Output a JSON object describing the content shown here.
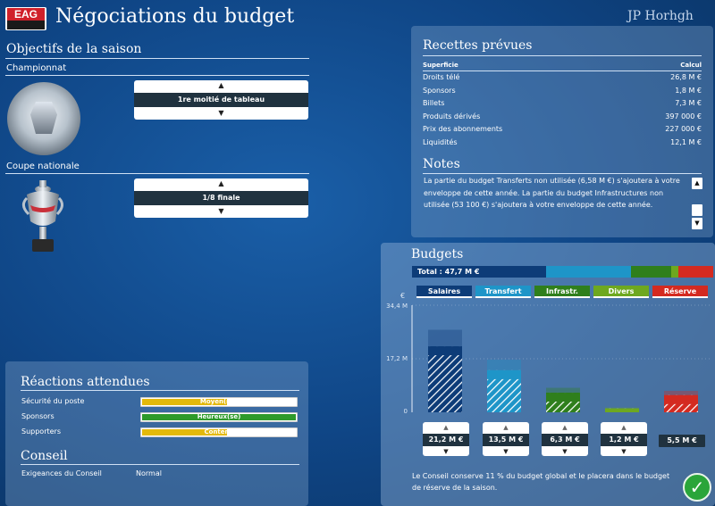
{
  "header": {
    "logo_text": "EAG",
    "title": "Négociations du budget",
    "user": "JP Horhgh"
  },
  "objectives": {
    "title": "Objectifs de la saison",
    "championnat": {
      "label": "Championnat",
      "value": "1re moitié de tableau"
    },
    "coupe": {
      "label": "Coupe nationale",
      "value": "1/8 finale"
    }
  },
  "recettes": {
    "title": "Recettes prévues",
    "col_left": "Superficie",
    "col_right": "Calcul",
    "rows": [
      {
        "label": "Droits télé",
        "value": "26,8 M €"
      },
      {
        "label": "Sponsors",
        "value": "1,8 M €"
      },
      {
        "label": "Billets",
        "value": "7,3 M €"
      },
      {
        "label": "Produits dérivés",
        "value": "397 000 €"
      },
      {
        "label": "Prix des abonnements",
        "value": "227 000 €"
      },
      {
        "label": "Liquidités",
        "value": "12,1 M €"
      }
    ]
  },
  "notes": {
    "title": "Notes",
    "text": "La partie du budget Transferts non utilisée (6,58 M €) s'ajoutera à votre enveloppe de cette année. La partie du budget Infrastructures non utilisée (53 100 €) s'ajoutera à votre enveloppe de cette année."
  },
  "reactions": {
    "title": "Réactions attendues",
    "rows": [
      {
        "label": "Sécurité du poste",
        "value": "Moyen(ne)",
        "color": "#e3b90b",
        "level": 0.55
      },
      {
        "label": "Sponsors",
        "value": "Heureux(se)",
        "color": "#2e9a2a",
        "level": 1.0
      },
      {
        "label": "Supporters",
        "value": "Contenu",
        "color": "#e3b90b",
        "level": 0.55
      }
    ]
  },
  "conseil": {
    "title": "Conseil",
    "label": "Exigeances du Conseil",
    "value": "Normal"
  },
  "budgets": {
    "title": "Budgets",
    "total_label": "Total : 47,7 M €",
    "y_unit": "€",
    "y_ticks": [
      "34,4 M",
      "17,2 M",
      "0"
    ],
    "footnote": "Le Conseil conserve 11 % du budget global et le placera dans le budget de réserve de la saison.",
    "categories": [
      {
        "label": "Salaires",
        "color": "#0d3c78",
        "value": "21,2 M €",
        "amount": 21.2
      },
      {
        "label": "Transfert",
        "color": "#1e95c8",
        "value": "13,5 M €",
        "amount": 13.5
      },
      {
        "label": "Infrastr.",
        "color": "#2f7f1c",
        "value": "6,3 M €",
        "amount": 6.3
      },
      {
        "label": "Divers",
        "color": "#6ea820",
        "value": "1,2 M €",
        "amount": 1.2
      },
      {
        "label": "Réserve",
        "color": "#d42a20",
        "value": "5,5 M €",
        "amount": 5.5
      }
    ]
  }
}
